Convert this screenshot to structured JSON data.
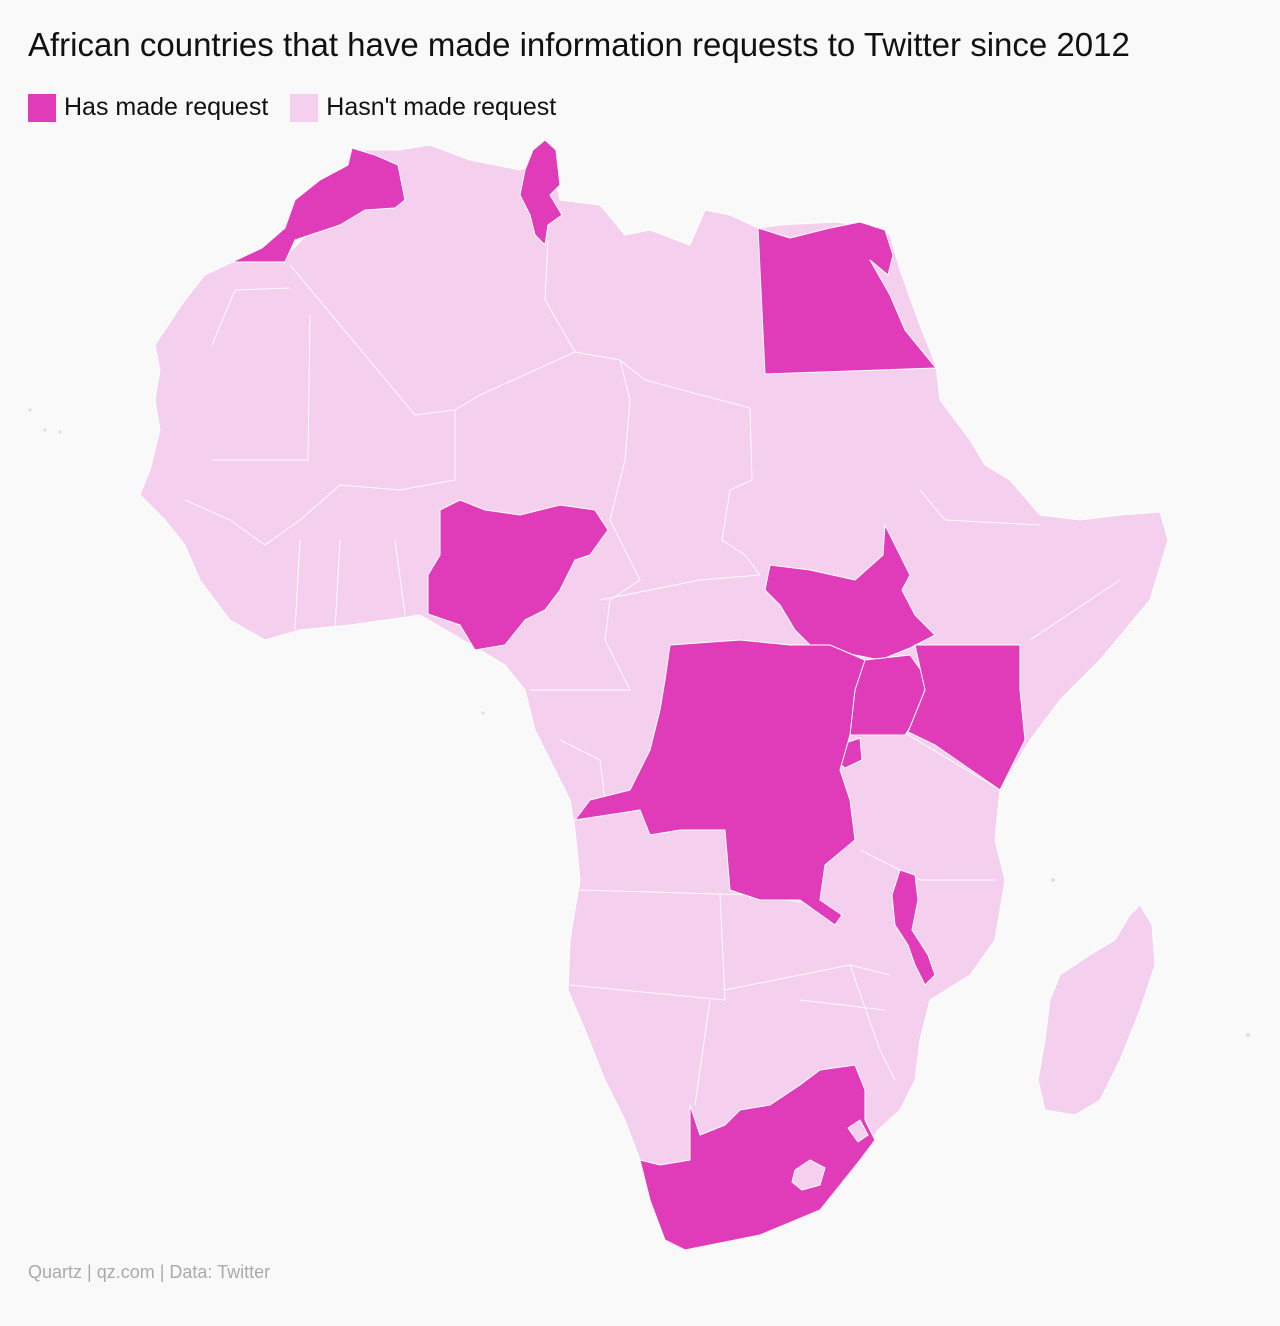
{
  "title": "African countries that have made information requests to Twitter since 2012",
  "legend": {
    "items": [
      {
        "label": "Has made request",
        "color": "#e03cba"
      },
      {
        "label": "Hasn't made request",
        "color": "#f4cfee"
      }
    ]
  },
  "colors": {
    "request": "#e03cba",
    "no_request": "#f4cfee",
    "background": "#f9f9f9"
  },
  "countries_with_requests": [
    "Morocco",
    "Tunisia",
    "Egypt",
    "Nigeria",
    "South Sudan",
    "Uganda",
    "Kenya",
    "Rwanda",
    "Democratic Republic of the Congo",
    "Malawi",
    "South Africa"
  ],
  "footer": "Quartz | qz.com | Data: Twitter"
}
